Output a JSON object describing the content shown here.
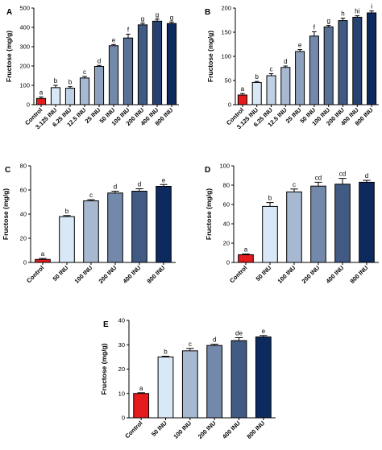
{
  "colors": {
    "control": "#e41a1c",
    "ramp_light": "#d9e8f7",
    "ramp_dark": "#0d2a5e",
    "axis": "#000000",
    "error_bar": "#000000"
  },
  "chart_data": [
    {
      "panel": "A",
      "type": "bar",
      "categories": [
        "Control",
        "3.125 INU",
        "6.25 INU",
        "12.5 INU",
        "25 INU",
        "50 INU",
        "100 INU",
        "200 INU",
        "400 INU",
        "800 INU"
      ],
      "values": [
        32,
        88,
        85,
        138,
        198,
        305,
        345,
        413,
        432,
        420
      ],
      "errors": [
        8,
        12,
        8,
        8,
        5,
        6,
        20,
        8,
        10,
        8
      ],
      "significance": [
        "a",
        "b",
        "b",
        "c",
        "d",
        "e",
        "f",
        "g",
        "g",
        "g"
      ],
      "ylabel": "Fructose (mg/g)",
      "ylim": [
        0,
        500
      ],
      "yticks": [
        0,
        100,
        200,
        300,
        400,
        500
      ],
      "grid": false,
      "legend": "none"
    },
    {
      "panel": "B",
      "type": "bar",
      "categories": [
        "Control",
        "3.125 INU",
        "6.25 INU",
        "12.5 INU",
        "25 INU",
        "50 INU",
        "100 INU",
        "200 INU",
        "400 INU",
        "800 INU"
      ],
      "values": [
        20,
        46,
        60,
        77,
        110,
        142,
        161,
        174,
        181,
        190
      ],
      "errors": [
        3,
        2,
        4,
        3,
        4,
        9,
        3,
        5,
        3,
        4
      ],
      "significance": [
        "a",
        "b",
        "c",
        "d",
        "e",
        "f",
        "g",
        "h",
        "hi",
        "i"
      ],
      "ylabel": "Fructose (mg/g)",
      "ylim": [
        0,
        200
      ],
      "yticks": [
        0,
        50,
        100,
        150,
        200
      ],
      "grid": false,
      "legend": "none"
    },
    {
      "panel": "C",
      "type": "bar",
      "categories": [
        "Control",
        "50 INU",
        "100 INU",
        "200 INU",
        "400 INU",
        "800 INU"
      ],
      "values": [
        2.5,
        38,
        51,
        57.5,
        59,
        63
      ],
      "errors": [
        0.8,
        0.8,
        1.0,
        1.5,
        2.0,
        1.5
      ],
      "significance": [
        "a",
        "b",
        "c",
        "d",
        "d",
        "e"
      ],
      "ylabel": "Fructose (mg/g)",
      "ylim": [
        0,
        80
      ],
      "yticks": [
        0,
        20,
        40,
        60,
        80
      ],
      "grid": false,
      "legend": "none"
    },
    {
      "panel": "D",
      "type": "bar",
      "categories": [
        "Control",
        "50 INU",
        "100 INU",
        "200 INU",
        "400 INU",
        "800 INU"
      ],
      "values": [
        8,
        58,
        73,
        79,
        81,
        83
      ],
      "errors": [
        0.8,
        4,
        3,
        4,
        6,
        2
      ],
      "significance": [
        "a",
        "b",
        "c",
        "cd",
        "cd",
        "d"
      ],
      "ylabel": "Fructose (mg/g)",
      "ylim": [
        0,
        100
      ],
      "yticks": [
        0,
        20,
        40,
        60,
        80,
        100
      ],
      "grid": false,
      "legend": "none"
    },
    {
      "panel": "E",
      "type": "bar",
      "categories": [
        "Control",
        "50 INU",
        "100 INU",
        "200 INU",
        "400 INU",
        "800 INU"
      ],
      "values": [
        10,
        25,
        27.5,
        29.7,
        31.7,
        33.2
      ],
      "errors": [
        0.3,
        0.3,
        1.0,
        0.5,
        1.2,
        0.6
      ],
      "significance": [
        "a",
        "b",
        "c",
        "d",
        "de",
        "e"
      ],
      "ylabel": "Fructose (mg/g)",
      "ylim": [
        0,
        40
      ],
      "yticks": [
        0,
        10,
        20,
        30,
        40
      ],
      "grid": false,
      "legend": "none"
    }
  ]
}
